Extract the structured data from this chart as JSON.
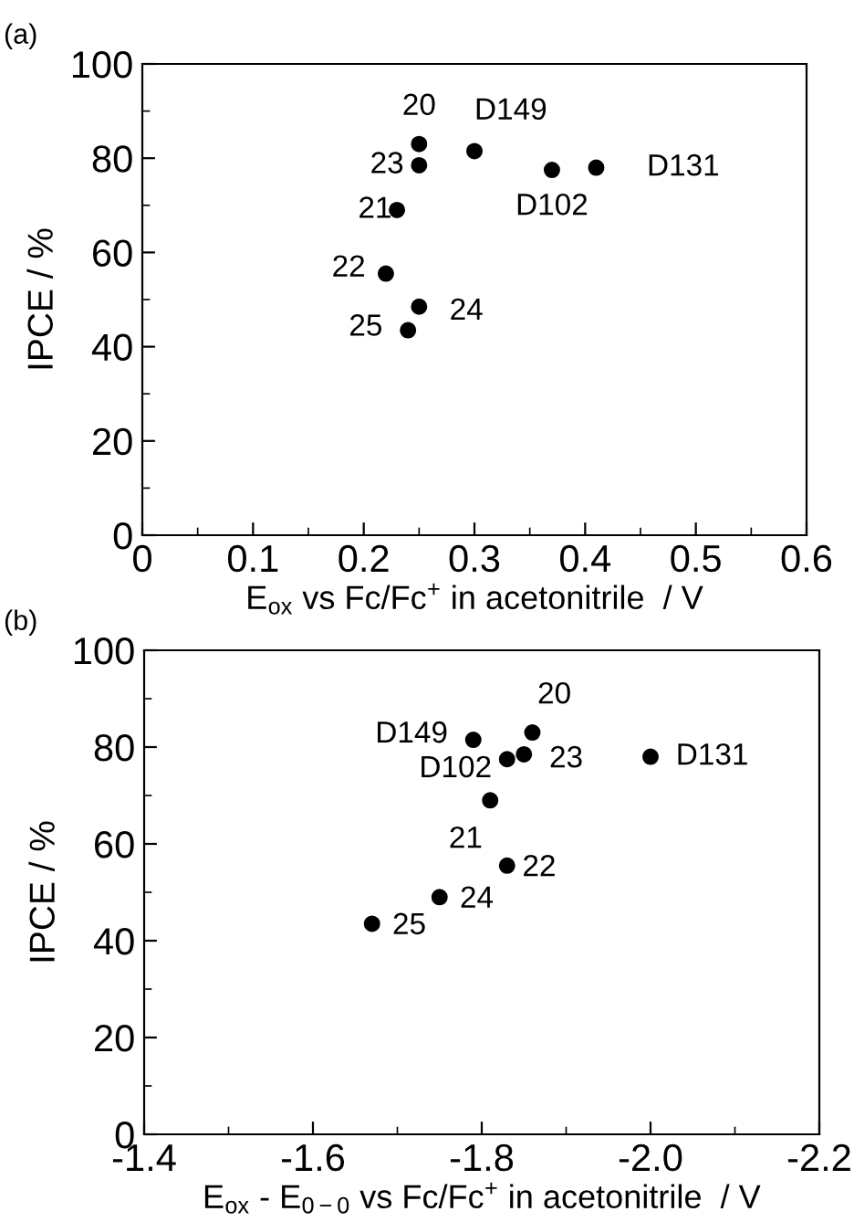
{
  "chart_data": [
    {
      "type": "scatter",
      "title": "(a)",
      "xlabel": "E$_{ox}$ vs Fc/Fc$^{+}$ in acetonitrile  / V",
      "ylabel": "IPCE / %",
      "color": "#000000",
      "marker": "circle",
      "x": [
        0.25,
        0.25,
        0.3,
        0.37,
        0.41,
        0.23,
        0.22,
        0.25,
        0.24
      ],
      "values": [
        83,
        78.5,
        81.5,
        77.5,
        78,
        69,
        55.5,
        48.5,
        43.5
      ],
      "annotations": [
        {
          "text": "20",
          "x": 0.25,
          "y": 83
        },
        {
          "text": "23",
          "x": 0.25,
          "y": 78.5
        },
        {
          "text": "D149",
          "x": 0.3,
          "y": 81.5
        },
        {
          "text": "D102",
          "x": 0.37,
          "y": 77.5
        },
        {
          "text": "D131",
          "x": 0.41,
          "y": 78
        },
        {
          "text": "21",
          "x": 0.23,
          "y": 69
        },
        {
          "text": "22",
          "x": 0.22,
          "y": 55.5
        },
        {
          "text": "24",
          "x": 0.25,
          "y": 48.5
        },
        {
          "text": "25",
          "x": 0.24,
          "y": 43.5
        }
      ],
      "xlim": [
        0,
        0.6
      ],
      "xticks": [
        0,
        0.1,
        0.2,
        0.3,
        0.4,
        0.5,
        0.6
      ],
      "ylim": [
        0,
        100
      ],
      "yticks": [
        0,
        20,
        40,
        60,
        80,
        100
      ],
      "grid": false,
      "legend": false
    },
    {
      "type": "scatter",
      "title": "(b)",
      "xlabel": "E$_{ox}$ - E$_{0−0}$ vs Fc/Fc$^{+}$ in acetonitrile  / V",
      "ylabel": "IPCE / %",
      "color": "#000000",
      "marker": "circle",
      "x": [
        -1.86,
        -1.79,
        -1.83,
        -1.85,
        -2.0,
        -1.81,
        -1.83,
        -1.75,
        -1.67
      ],
      "values": [
        83,
        81.5,
        77.5,
        78.5,
        78,
        69,
        55.5,
        49,
        43.5
      ],
      "annotations": [
        {
          "text": "20",
          "x": -1.86,
          "y": 83
        },
        {
          "text": "D149",
          "x": -1.79,
          "y": 81.5
        },
        {
          "text": "D102",
          "x": -1.83,
          "y": 77.5
        },
        {
          "text": "23",
          "x": -1.85,
          "y": 78.5
        },
        {
          "text": "D131",
          "x": -2.0,
          "y": 78
        },
        {
          "text": "21",
          "x": -1.81,
          "y": 69
        },
        {
          "text": "22",
          "x": -1.83,
          "y": 55.5
        },
        {
          "text": "24",
          "x": -1.75,
          "y": 49
        },
        {
          "text": "25",
          "x": -1.67,
          "y": 43.5
        }
      ],
      "xlim": [
        -1.4,
        -2.2
      ],
      "xticks": [
        {
          "value": -1.4,
          "label": "-1.4"
        },
        {
          "value": -1.6,
          "label": "-1.6"
        },
        {
          "value": -1.8,
          "label": "-1.8"
        },
        {
          "value": -2.0,
          "label": "-2.0"
        },
        {
          "value": -2.2,
          "label": "-2.2"
        }
      ],
      "ylim": [
        0,
        100
      ],
      "yticks": [
        0,
        20,
        40,
        60,
        80,
        100
      ],
      "grid": false,
      "legend": false
    }
  ]
}
